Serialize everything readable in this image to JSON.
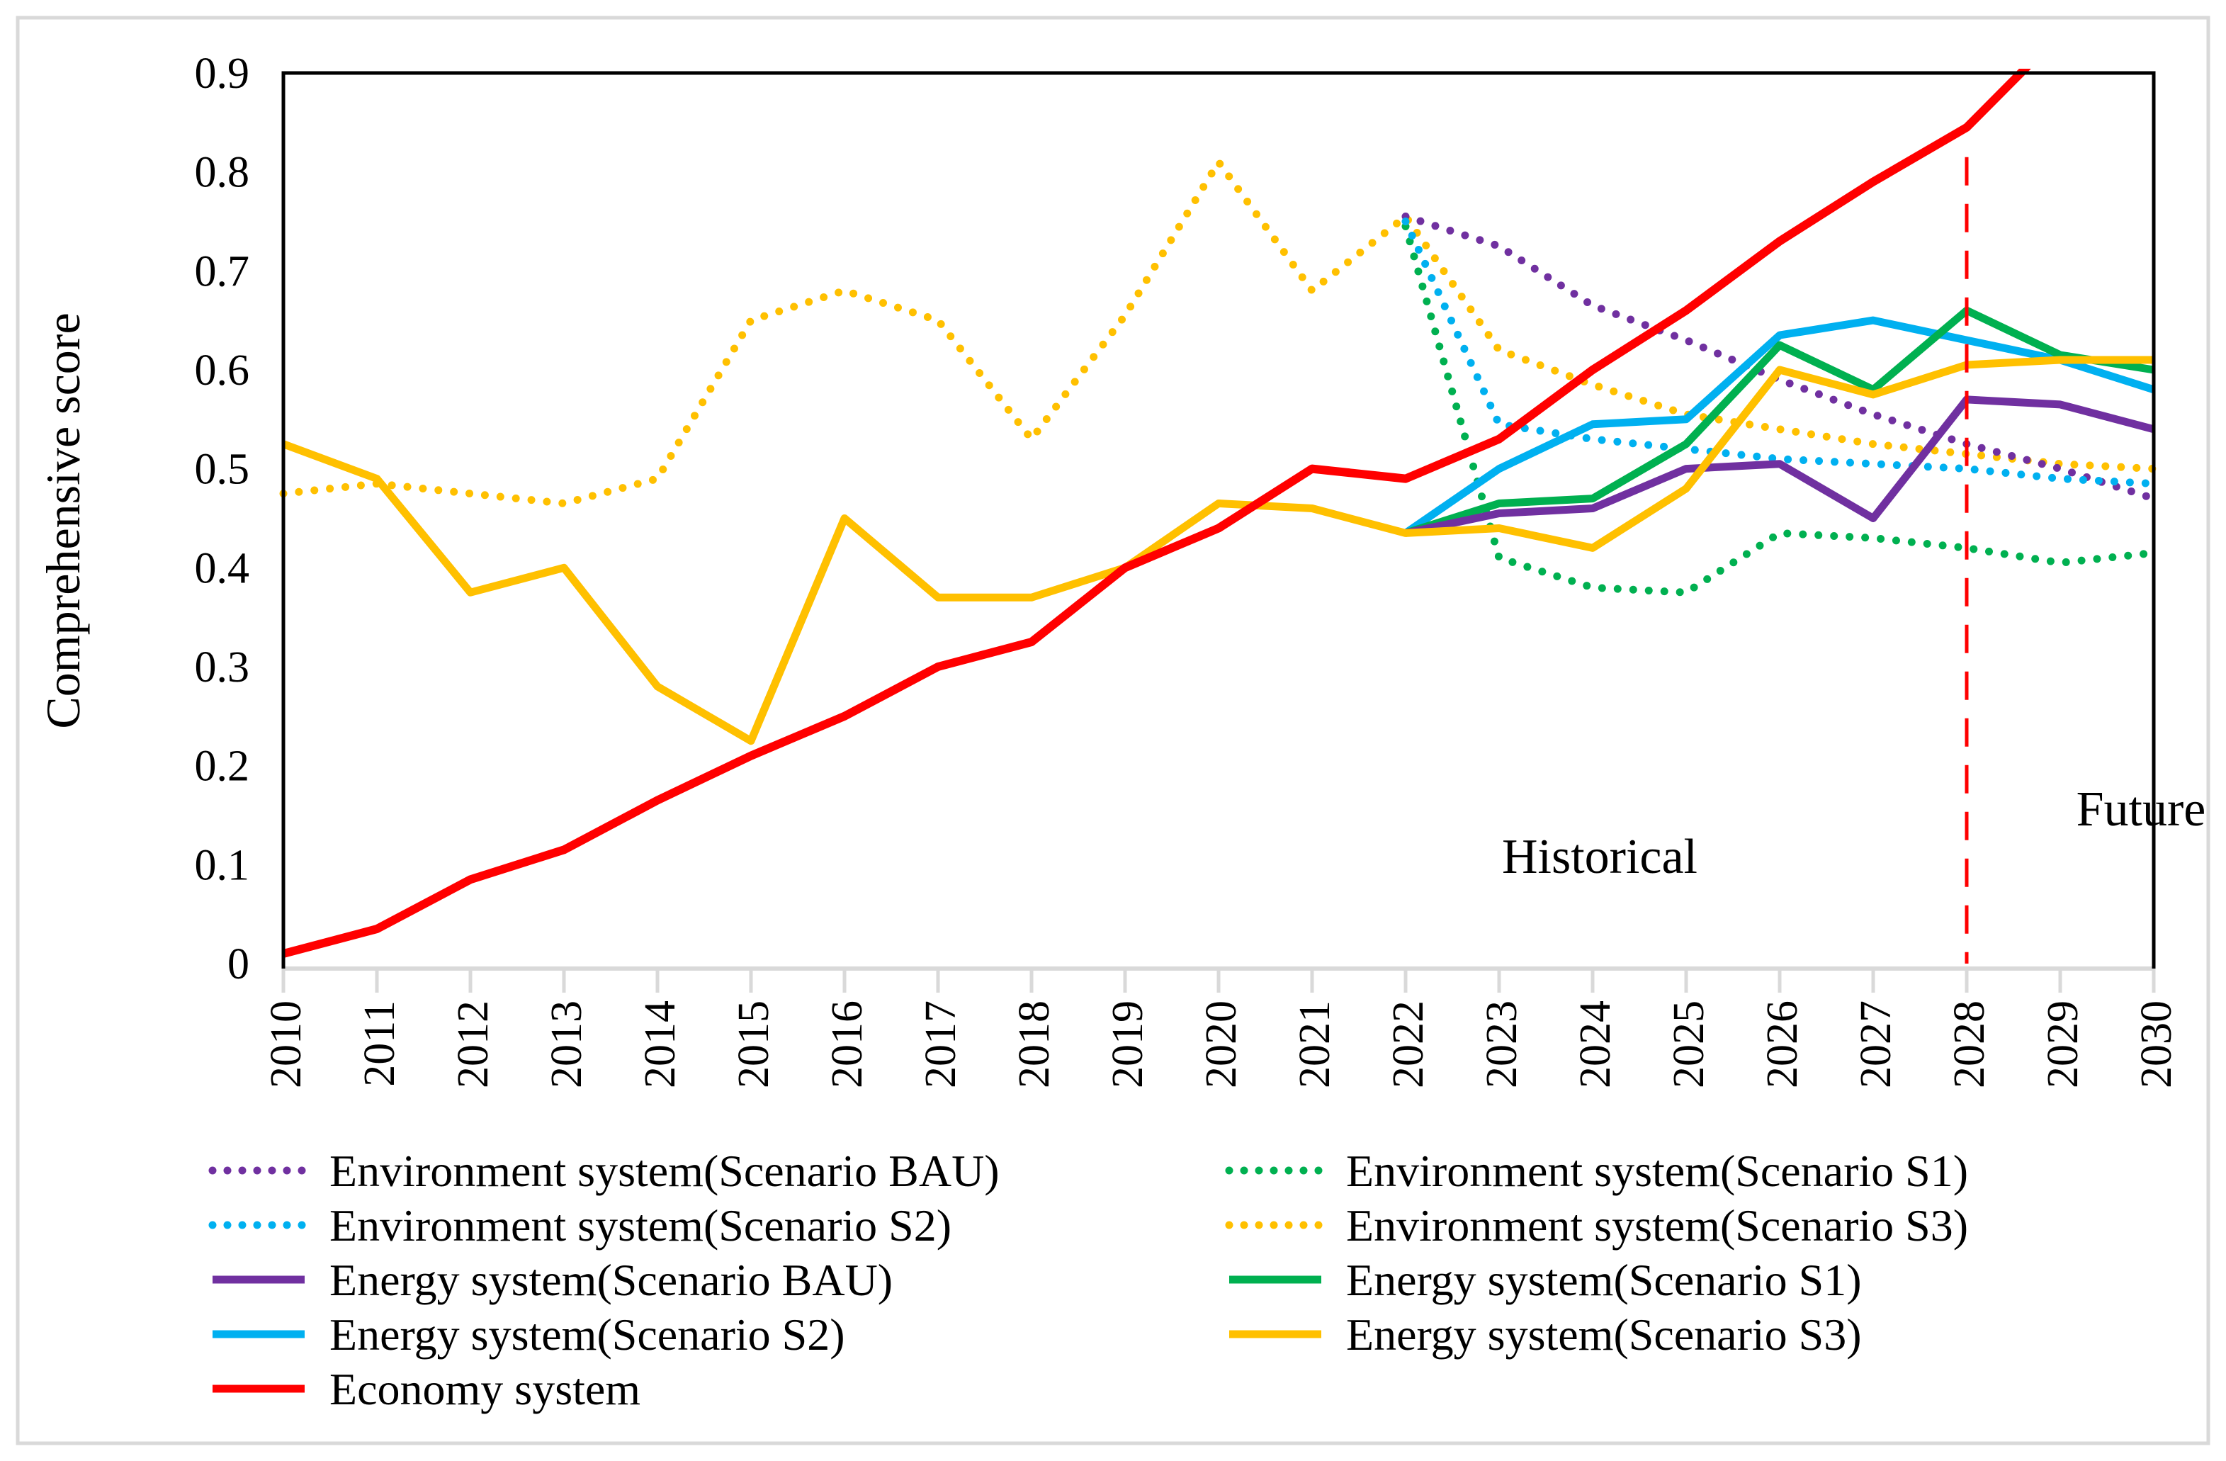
{
  "figure": {
    "ylabel": "Comprehensive score",
    "annotations": {
      "historical": "Historical",
      "future": "Future"
    },
    "colors": {
      "frame_gray": "#D9D9D9",
      "axis_gray": "#D9D9D9",
      "plot_border_black": "#000000",
      "divider_red": "#FF0000",
      "text": "#000000"
    }
  },
  "chart_data": {
    "type": "line",
    "title": "",
    "xlabel": "",
    "ylabel": "Comprehensive score",
    "grid": false,
    "legend_position": "bottom-two-columns",
    "ylim": [
      0,
      0.9
    ],
    "ytick_values": [
      0,
      0.1,
      0.2,
      0.3,
      0.4,
      0.5,
      0.6,
      0.7,
      0.8,
      0.9
    ],
    "ytick_labels": [
      "0",
      "0.1",
      "0.2",
      "0.3",
      "0.4",
      "0.5",
      "0.6",
      "0.7",
      "0.8",
      "0.9"
    ],
    "x": [
      2010,
      2011,
      2012,
      2013,
      2014,
      2015,
      2016,
      2017,
      2018,
      2019,
      2020,
      2021,
      2022,
      2023,
      2024,
      2025,
      2026,
      2027,
      2028,
      2029,
      2030
    ],
    "x_labels": [
      "2010",
      "2011",
      "2012",
      "2013",
      "2014",
      "2015",
      "2016",
      "2017",
      "2018",
      "2019",
      "2020",
      "2021",
      "2022",
      "2023",
      "2024",
      "2025",
      "2026",
      "2027",
      "2028",
      "2029",
      "2030"
    ],
    "divider": {
      "x": 2028,
      "top_value": 0.815,
      "color": "#FF0000",
      "style": "dashed"
    },
    "series": [
      {
        "id": "environment-bau",
        "name": "Environment system(Scenario BAU)",
        "color": "#7030A0",
        "style": "dotted",
        "legend_col": 1,
        "legend_row": 1,
        "values": [
          null,
          null,
          null,
          null,
          null,
          null,
          null,
          null,
          null,
          null,
          null,
          null,
          0.755,
          0.725,
          0.665,
          0.63,
          0.59,
          0.555,
          0.525,
          0.5,
          0.47
        ]
      },
      {
        "id": "environment-s1",
        "name": "Environment system(Scenario S1)",
        "color": "#00B050",
        "style": "dotted",
        "legend_col": 2,
        "legend_row": 1,
        "values": [
          null,
          null,
          null,
          null,
          null,
          null,
          null,
          null,
          null,
          null,
          null,
          null,
          0.745,
          0.41,
          0.38,
          0.375,
          0.435,
          0.43,
          0.42,
          0.405,
          0.415
        ]
      },
      {
        "id": "environment-s2",
        "name": "Environment system(Scenario S2)",
        "color": "#00B0F0",
        "style": "dotted",
        "legend_col": 1,
        "legend_row": 2,
        "values": [
          null,
          null,
          null,
          null,
          null,
          null,
          null,
          null,
          null,
          null,
          null,
          null,
          0.75,
          0.545,
          0.53,
          0.52,
          0.51,
          0.505,
          0.5,
          0.49,
          0.485
        ]
      },
      {
        "id": "environment-s3",
        "name": "Environment system(Scenario S3)",
        "color": "#FFC000",
        "style": "dotted",
        "legend_col": 2,
        "legend_row": 2,
        "values": [
          0.475,
          0.485,
          0.475,
          0.465,
          0.49,
          0.65,
          0.68,
          0.65,
          0.53,
          0.655,
          0.81,
          0.68,
          0.755,
          0.62,
          0.585,
          0.555,
          0.54,
          0.525,
          0.515,
          0.505,
          0.5
        ]
      },
      {
        "id": "energy-bau",
        "name": "Energy system(Scenario BAU)",
        "color": "#7030A0",
        "style": "solid",
        "legend_col": 1,
        "legend_row": 3,
        "values": [
          null,
          null,
          null,
          null,
          null,
          null,
          null,
          null,
          null,
          null,
          null,
          null,
          0.435,
          0.455,
          0.46,
          0.5,
          0.505,
          0.45,
          0.57,
          0.565,
          0.54
        ]
      },
      {
        "id": "energy-s1",
        "name": "Energy system(Scenario S1)",
        "color": "#00B050",
        "style": "solid",
        "legend_col": 2,
        "legend_row": 3,
        "values": [
          null,
          null,
          null,
          null,
          null,
          null,
          null,
          null,
          null,
          null,
          null,
          null,
          0.435,
          0.465,
          0.47,
          0.525,
          0.625,
          0.58,
          0.66,
          0.615,
          0.6
        ]
      },
      {
        "id": "energy-s2",
        "name": "Energy system(Scenario S2)",
        "color": "#00B0F0",
        "style": "solid",
        "legend_col": 1,
        "legend_row": 4,
        "values": [
          null,
          null,
          null,
          null,
          null,
          null,
          null,
          null,
          null,
          null,
          null,
          null,
          0.435,
          0.5,
          0.545,
          0.55,
          0.635,
          0.65,
          0.63,
          0.61,
          0.58
        ]
      },
      {
        "id": "energy-s3",
        "name": "Energy system(Scenario S3)",
        "color": "#FFC000",
        "style": "solid",
        "legend_col": 2,
        "legend_row": 4,
        "values": [
          0.525,
          0.49,
          0.375,
          0.4,
          0.28,
          0.225,
          0.45,
          0.37,
          0.37,
          0.4,
          0.465,
          0.46,
          0.435,
          0.44,
          0.42,
          0.48,
          0.6,
          0.575,
          0.605,
          0.61,
          0.61
        ]
      },
      {
        "id": "economy",
        "name": "Economy system",
        "color": "#FF0000",
        "style": "solid",
        "legend_col": 1,
        "legend_row": 5,
        "values": [
          0.01,
          0.035,
          0.085,
          0.115,
          0.165,
          0.21,
          0.25,
          0.3,
          0.325,
          0.4,
          0.44,
          0.5,
          0.49,
          0.53,
          0.6,
          0.66,
          0.73,
          0.79,
          0.845,
          0.94,
          null
        ]
      }
    ],
    "draw_order": [
      "environment-s3",
      "environment-bau",
      "environment-s1",
      "environment-s2",
      "energy-s2",
      "energy-s1",
      "energy-bau",
      "energy-s3",
      "economy"
    ]
  }
}
